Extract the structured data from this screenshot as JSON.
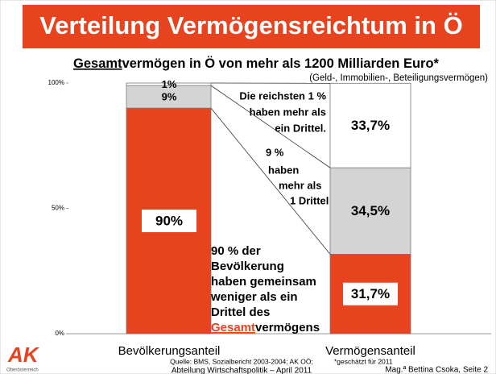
{
  "chart_data": {
    "type": "stacked_bar",
    "title": "Verteilung Vermögensreichtum in Ö",
    "subtitle": [
      "Gesamt",
      "vermögen in Ö von mehr als 1200 Milliarden Euro*"
    ],
    "note": "(Geld-, Immobilien-, Beteiligungsvermögen)",
    "categories": [
      "Bevölkerungsanteil",
      "Vermögensanteil"
    ],
    "series": [
      {
        "color": "#e8431f",
        "values": [
          90,
          31.7
        ],
        "value_labels": [
          "90%",
          "31,7%"
        ]
      },
      {
        "color": "#d4d4d4",
        "values": [
          9,
          34.5
        ],
        "value_labels": [
          "9%",
          "34,5%"
        ]
      },
      {
        "color": "#ffffff",
        "values": [
          1,
          33.7
        ],
        "value_labels": [
          "1%",
          "33,7%"
        ]
      }
    ],
    "ylim": [
      0,
      100
    ],
    "yticks": [
      {
        "value": 0,
        "label": "0%"
      },
      {
        "value": 50,
        "label": "50%"
      },
      {
        "value": 100,
        "label": "100%"
      }
    ],
    "annotations": [
      [
        "Die reichsten 1 %",
        "haben mehr als",
        "ein Drittel."
      ],
      [
        "9 %",
        "haben",
        "mehr als",
        "1 Drittel"
      ],
      [
        "90 % der",
        "Bevölkerung",
        "haben gemeinsam",
        "weniger als ein",
        "Drittel des"
      ]
    ],
    "annotation_last_line": [
      "Gesamt",
      "vermögens"
    ],
    "footer": {
      "source": "Quelle: BMS, Sozialbericht 2003-2004; AK OÖ;",
      "estimate": "*geschätzt für 2011",
      "department": "Abteilung Wirtschaftspolitik – April 2011",
      "author": "Mag.ª Bettina Csoka, Seite 2",
      "logo": "AK",
      "logo_sub": "Oberösterreich"
    }
  }
}
